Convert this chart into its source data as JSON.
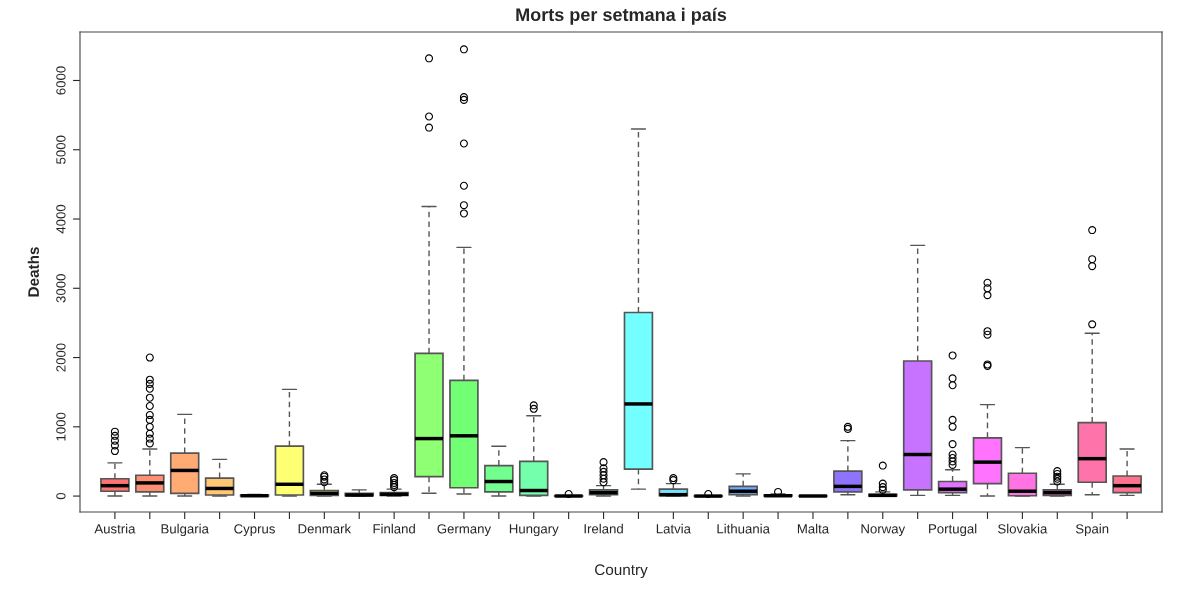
{
  "chart_data": {
    "type": "box",
    "title": "Morts per setmana i país",
    "xlabel": "Country",
    "ylabel": "Deaths",
    "categories": [
      "Austria",
      null,
      "Bulgaria",
      null,
      "Cyprus",
      null,
      "Denmark",
      null,
      "Finland",
      null,
      "Germany",
      null,
      "Hungary",
      null,
      "Ireland",
      null,
      "Latvia",
      null,
      "Lithuania",
      null,
      "Malta",
      null,
      "Norway",
      null,
      "Portugal",
      null,
      "Slovakia",
      null,
      "Spain",
      null
    ],
    "colors": [
      "#ff7373",
      "#ff8f73",
      "#ffab73",
      "#ffc773",
      "#ffe373",
      "#ffff73",
      "#e3ff73",
      "#c7ff73",
      "#abff73",
      "#8fff73",
      "#73ff73",
      "#73ff8f",
      "#73ffab",
      "#73ffc7",
      "#73ffe3",
      "#73ffff",
      "#73e3ff",
      "#73c7ff",
      "#73abff",
      "#738fff",
      "#7373ff",
      "#8f73ff",
      "#ab73ff",
      "#c773ff",
      "#e373ff",
      "#ff73ff",
      "#ff73e3",
      "#ff73c7",
      "#ff73ab",
      "#ff738f"
    ],
    "boxes": [
      {
        "low": 0,
        "q1": 70,
        "median": 150,
        "q3": 250,
        "high": 480,
        "outliers": [
          650,
          730,
          800,
          870,
          930
        ]
      },
      {
        "low": 0,
        "q1": 60,
        "median": 190,
        "q3": 300,
        "high": 680,
        "outliers": [
          760,
          830,
          900,
          1000,
          1100,
          1170,
          1300,
          1420,
          1550,
          1620,
          1680,
          2000
        ]
      },
      {
        "low": 0,
        "q1": 40,
        "median": 370,
        "q3": 620,
        "high": 1180
      },
      {
        "low": 0,
        "q1": 15,
        "median": 110,
        "q3": 260,
        "high": 530
      },
      {
        "low": 0,
        "q1": 2,
        "median": 5,
        "q3": 12,
        "high": 25
      },
      {
        "low": 0,
        "q1": 15,
        "median": 170,
        "q3": 720,
        "high": 1540
      },
      {
        "low": 0,
        "q1": 10,
        "median": 40,
        "q3": 80,
        "high": 170,
        "outliers": [
          200,
          240,
          280,
          300
        ]
      },
      {
        "low": 0,
        "q1": 5,
        "median": 15,
        "q3": 40,
        "high": 90
      },
      {
        "low": 0,
        "q1": 10,
        "median": 25,
        "q3": 50,
        "high": 100,
        "outliers": [
          130,
          160,
          190,
          230,
          260
        ]
      },
      {
        "low": 40,
        "q1": 280,
        "median": 830,
        "q3": 2060,
        "high": 4180,
        "outliers": [
          5320,
          5480,
          6320
        ]
      },
      {
        "low": 30,
        "q1": 120,
        "median": 870,
        "q3": 1670,
        "high": 3590,
        "outliers": [
          4080,
          4200,
          4480,
          5090,
          5720,
          5760,
          6450
        ]
      },
      {
        "low": 0,
        "q1": 60,
        "median": 210,
        "q3": 440,
        "high": 720
      },
      {
        "low": 0,
        "q1": 10,
        "median": 80,
        "q3": 500,
        "high": 1160,
        "outliers": [
          1260,
          1310
        ]
      },
      {
        "low": 0,
        "q1": 0,
        "median": 1,
        "q3": 2,
        "high": 5,
        "outliers": [
          30
        ]
      },
      {
        "low": 0,
        "q1": 20,
        "median": 50,
        "q3": 90,
        "high": 150,
        "outliers": [
          200,
          250,
          300,
          350,
          400,
          490
        ]
      },
      {
        "low": 100,
        "q1": 390,
        "median": 1330,
        "q3": 2650,
        "high": 5300
      },
      {
        "low": 0,
        "q1": 5,
        "median": 20,
        "q3": 100,
        "high": 180,
        "outliers": [
          230,
          260
        ]
      },
      {
        "low": 0,
        "q1": 0,
        "median": 0,
        "q3": 1,
        "high": 2,
        "outliers": [
          30
        ]
      },
      {
        "low": 0,
        "q1": 20,
        "median": 70,
        "q3": 140,
        "high": 320
      },
      {
        "low": 0,
        "q1": 2,
        "median": 5,
        "q3": 15,
        "high": 30,
        "outliers": [
          60
        ]
      },
      {
        "low": 0,
        "q1": 0,
        "median": 1,
        "q3": 2,
        "high": 5
      },
      {
        "low": 20,
        "q1": 60,
        "median": 140,
        "q3": 360,
        "high": 800,
        "outliers": [
          970,
          1000
        ]
      },
      {
        "low": 0,
        "q1": 2,
        "median": 10,
        "q3": 25,
        "high": 60,
        "outliers": [
          90,
          130,
          180,
          440
        ]
      },
      {
        "low": 10,
        "q1": 90,
        "median": 600,
        "q3": 1950,
        "high": 3620
      },
      {
        "low": 10,
        "q1": 50,
        "median": 100,
        "q3": 210,
        "high": 380,
        "outliers": [
          450,
          500,
          550,
          600,
          750,
          1000,
          1100,
          1600,
          1700,
          2030
        ]
      },
      {
        "low": 0,
        "q1": 180,
        "median": 490,
        "q3": 840,
        "high": 1320,
        "outliers": [
          1880,
          1900,
          2330,
          2380,
          2900,
          3000,
          3080
        ]
      },
      {
        "low": 0,
        "q1": 5,
        "median": 70,
        "q3": 330,
        "high": 700
      },
      {
        "low": 0,
        "q1": 10,
        "median": 50,
        "q3": 90,
        "high": 170,
        "outliers": [
          210,
          250,
          280,
          320,
          360
        ]
      },
      {
        "low": 20,
        "q1": 200,
        "median": 540,
        "q3": 1060,
        "high": 2350,
        "outliers": [
          2480,
          3320,
          3420,
          3840
        ]
      },
      {
        "low": 10,
        "q1": 50,
        "median": 150,
        "q3": 290,
        "high": 680
      }
    ],
    "ylim": [
      -230,
      6700
    ],
    "yticks": [
      0,
      1000,
      2000,
      3000,
      4000,
      5000,
      6000
    ],
    "grid": false
  }
}
